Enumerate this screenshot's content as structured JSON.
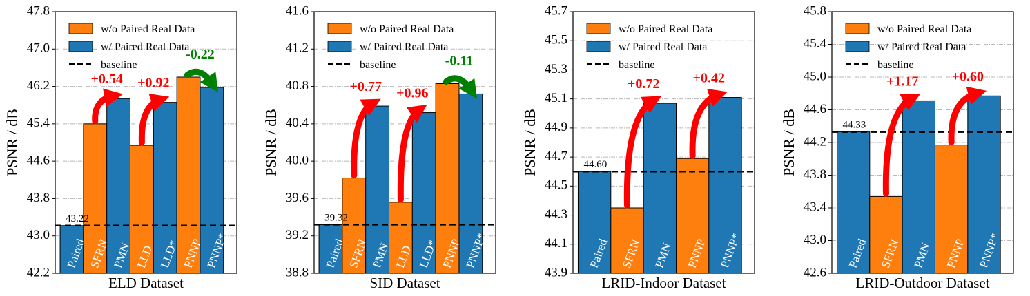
{
  "colors": {
    "wo": "#ff7f0e",
    "w": "#1f77b4",
    "up": "#ff0000",
    "down": "#008000"
  },
  "legend": {
    "wo_label": "w/o Paired Real Data",
    "w_label": "w/ Paired Real Data",
    "baseline_label": "baseline"
  },
  "chart_data": [
    {
      "type": "bar",
      "xlabel": "ELD Dataset",
      "ylabel": "PSNR / dB",
      "ylim": [
        42.2,
        47.8
      ],
      "yticks": [
        "42.2",
        "43.0",
        "43.8",
        "44.6",
        "45.4",
        "46.2",
        "47.0",
        "47.8"
      ],
      "baseline": 43.22,
      "baseline_label": "43.22",
      "bars": [
        {
          "label": "Paired",
          "value": 43.22,
          "group": "w"
        },
        {
          "label": "SFRN",
          "value": 45.4,
          "group": "wo"
        },
        {
          "label": "PMN",
          "value": 45.94,
          "group": "w"
        },
        {
          "label": "LLD",
          "value": 44.94,
          "group": "wo"
        },
        {
          "label": "LLD*",
          "value": 45.86,
          "group": "w"
        },
        {
          "label": "PNNP",
          "value": 46.4,
          "group": "wo"
        },
        {
          "label": "PNNP*",
          "value": 46.18,
          "group": "w"
        }
      ],
      "deltas": [
        {
          "from": 1,
          "to": 2,
          "text": "+0.54",
          "dir": "up"
        },
        {
          "from": 3,
          "to": 4,
          "text": "+0.92",
          "dir": "up"
        },
        {
          "from": 5,
          "to": 6,
          "text": "-0.22",
          "dir": "down"
        }
      ]
    },
    {
      "type": "bar",
      "xlabel": "SID Dataset",
      "ylabel": "PSNR / dB",
      "ylim": [
        38.8,
        41.6
      ],
      "yticks": [
        "38.8",
        "39.2",
        "39.6",
        "40.0",
        "40.4",
        "40.8",
        "41.2",
        "41.6"
      ],
      "baseline": 39.32,
      "baseline_label": "39.32",
      "bars": [
        {
          "label": "Paired",
          "value": 39.32,
          "group": "w"
        },
        {
          "label": "SFRN",
          "value": 39.82,
          "group": "wo"
        },
        {
          "label": "PMN",
          "value": 40.59,
          "group": "w"
        },
        {
          "label": "LLD",
          "value": 39.56,
          "group": "wo"
        },
        {
          "label": "LLD*",
          "value": 40.52,
          "group": "w"
        },
        {
          "label": "PNNP",
          "value": 40.83,
          "group": "wo"
        },
        {
          "label": "PNNP*",
          "value": 40.72,
          "group": "w"
        }
      ],
      "deltas": [
        {
          "from": 1,
          "to": 2,
          "text": "+0.77",
          "dir": "up"
        },
        {
          "from": 3,
          "to": 4,
          "text": "+0.96",
          "dir": "up"
        },
        {
          "from": 5,
          "to": 6,
          "text": "-0.11",
          "dir": "down"
        }
      ]
    },
    {
      "type": "bar",
      "xlabel": "LRID-Indoor Dataset",
      "ylabel": "PSNR / dB",
      "ylim": [
        43.9,
        45.7
      ],
      "yticks": [
        "43.9",
        "44.1",
        "44.3",
        "44.5",
        "44.7",
        "44.9",
        "45.1",
        "45.3",
        "45.5",
        "45.7"
      ],
      "baseline": 44.6,
      "baseline_label": "44.60",
      "bars": [
        {
          "label": "Paired",
          "value": 44.6,
          "group": "w"
        },
        {
          "label": "SFRN",
          "value": 44.35,
          "group": "wo"
        },
        {
          "label": "PMN",
          "value": 45.07,
          "group": "w"
        },
        {
          "label": "PNNP",
          "value": 44.69,
          "group": "wo"
        },
        {
          "label": "PNNP*",
          "value": 45.11,
          "group": "w"
        }
      ],
      "deltas": [
        {
          "from": 1,
          "to": 2,
          "text": "+0.72",
          "dir": "up"
        },
        {
          "from": 3,
          "to": 4,
          "text": "+0.42",
          "dir": "up"
        }
      ]
    },
    {
      "type": "bar",
      "xlabel": "LRID-Outdoor Dataset",
      "ylabel": "PSNR / dB",
      "ylim": [
        42.6,
        45.8
      ],
      "yticks": [
        "42.6",
        "43.0",
        "43.4",
        "43.8",
        "44.2",
        "44.6",
        "45.0",
        "45.4",
        "45.8"
      ],
      "baseline": 44.33,
      "baseline_label": "44.33",
      "bars": [
        {
          "label": "Paired",
          "value": 44.33,
          "group": "w"
        },
        {
          "label": "SFRN",
          "value": 43.54,
          "group": "wo"
        },
        {
          "label": "PMN",
          "value": 44.71,
          "group": "w"
        },
        {
          "label": "PNNP",
          "value": 44.17,
          "group": "wo"
        },
        {
          "label": "PNNP*",
          "value": 44.77,
          "group": "w"
        }
      ],
      "deltas": [
        {
          "from": 1,
          "to": 2,
          "text": "+1.17",
          "dir": "up"
        },
        {
          "from": 3,
          "to": 4,
          "text": "+0.60",
          "dir": "up"
        }
      ]
    }
  ]
}
